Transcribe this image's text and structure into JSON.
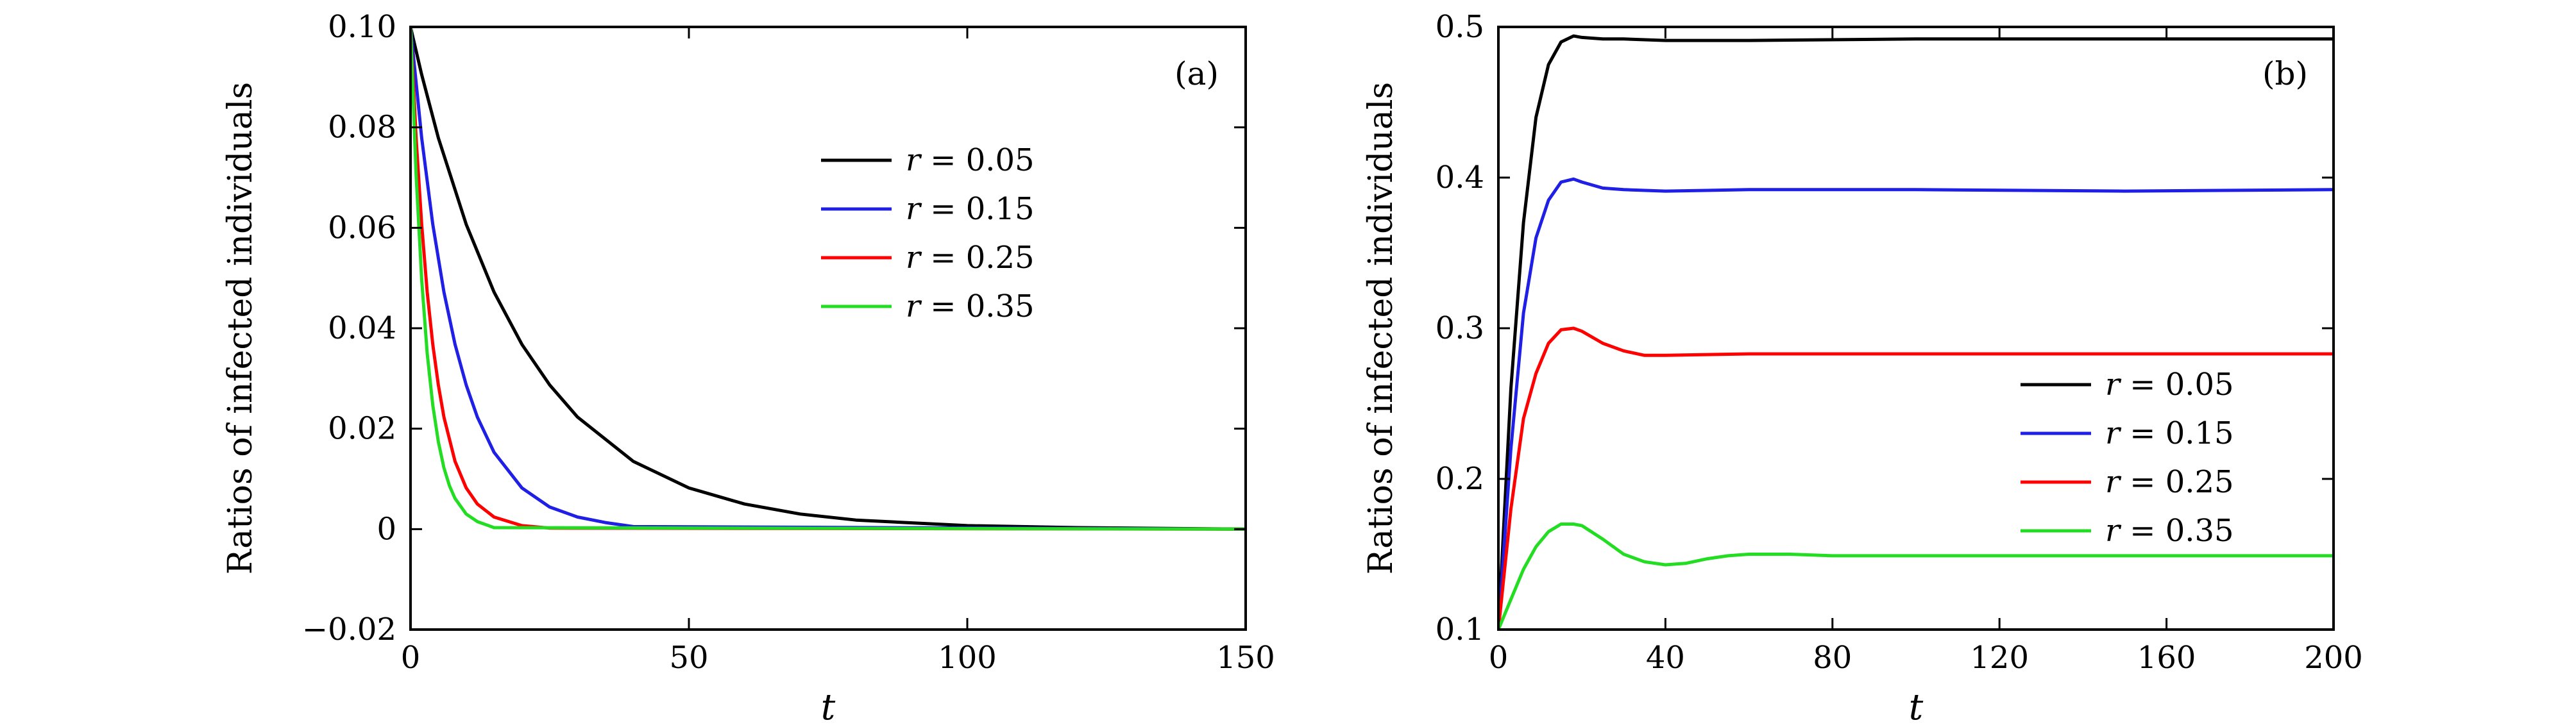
{
  "chart_data": [
    {
      "type": "line",
      "panel": "(a)",
      "xlabel": "t",
      "ylabel": "Ratios of infected individuals",
      "xlim": [
        0,
        150
      ],
      "ylim": [
        -0.02,
        0.1
      ],
      "xticks": [
        0,
        50,
        100,
        150
      ],
      "xtick_labels": [
        "0",
        "50",
        "100",
        "150"
      ],
      "yticks": [
        -0.02,
        0,
        0.02,
        0.04,
        0.06,
        0.08,
        0.1
      ],
      "ytick_labels": [
        "−0.02",
        "0",
        "0.02",
        "0.04",
        "0.06",
        "0.08",
        "0.10"
      ],
      "legend_position": "upper-middle-right",
      "series": [
        {
          "name": "r = 0.05",
          "r": "0.05",
          "color": "#000000",
          "x": [
            0,
            2,
            5,
            10,
            15,
            20,
            25,
            30,
            40,
            50,
            60,
            70,
            80,
            100,
            120,
            150
          ],
          "y": [
            0.1,
            0.0905,
            0.0779,
            0.0607,
            0.0472,
            0.0368,
            0.0287,
            0.0223,
            0.0135,
            0.0082,
            0.005,
            0.003,
            0.0018,
            0.0007,
            0.0003,
            0.0
          ]
        },
        {
          "name": "r = 0.15",
          "r": "0.15",
          "color": "#1f1fe6",
          "x": [
            0,
            2,
            4,
            6,
            8,
            10,
            12,
            15,
            20,
            25,
            30,
            35,
            40,
            150
          ],
          "y": [
            0.1,
            0.0779,
            0.0607,
            0.0472,
            0.0368,
            0.0287,
            0.0223,
            0.0153,
            0.0082,
            0.0044,
            0.0024,
            0.0013,
            0.0005,
            0.0
          ]
        },
        {
          "name": "r = 0.25",
          "r": "0.25",
          "color": "#ff0000",
          "x": [
            0,
            1,
            2,
            3,
            4,
            5,
            6,
            8,
            10,
            12,
            15,
            20,
            25,
            150
          ],
          "y": [
            0.1,
            0.0779,
            0.0607,
            0.0472,
            0.0368,
            0.0287,
            0.0223,
            0.0135,
            0.0082,
            0.005,
            0.0024,
            0.0007,
            0.0002,
            0.0
          ]
        },
        {
          "name": "r = 0.35",
          "r": "0.35",
          "color": "#22dd22",
          "x": [
            0,
            1,
            2,
            3,
            4,
            5,
            6,
            7,
            8,
            10,
            12,
            15,
            150
          ],
          "y": [
            0.1,
            0.0705,
            0.0497,
            0.035,
            0.0247,
            0.0174,
            0.0122,
            0.0086,
            0.0061,
            0.003,
            0.0015,
            0.0003,
            0.0
          ]
        }
      ]
    },
    {
      "type": "line",
      "panel": "(b)",
      "xlabel": "t",
      "ylabel": "Ratios of infected individuals",
      "xlim": [
        0,
        200
      ],
      "ylim": [
        0.1,
        0.5
      ],
      "xticks": [
        0,
        40,
        80,
        120,
        160,
        200
      ],
      "xtick_labels": [
        "0",
        "40",
        "80",
        "120",
        "160",
        "200"
      ],
      "yticks": [
        0.1,
        0.2,
        0.3,
        0.4,
        0.5
      ],
      "ytick_labels": [
        "0.1",
        "0.2",
        "0.3",
        "0.4",
        "0.5"
      ],
      "legend_position": "lower-right",
      "series": [
        {
          "name": "r = 0.05",
          "r": "0.05",
          "color": "#000000",
          "x": [
            0,
            3,
            6,
            9,
            12,
            15,
            18,
            20,
            25,
            30,
            40,
            60,
            100,
            150,
            200
          ],
          "y": [
            0.1,
            0.26,
            0.37,
            0.44,
            0.475,
            0.49,
            0.494,
            0.493,
            0.492,
            0.492,
            0.491,
            0.491,
            0.492,
            0.492,
            0.492
          ]
        },
        {
          "name": "r = 0.15",
          "r": "0.15",
          "color": "#1f1fe6",
          "x": [
            0,
            3,
            6,
            9,
            12,
            15,
            18,
            20,
            25,
            30,
            40,
            60,
            100,
            150,
            200
          ],
          "y": [
            0.1,
            0.22,
            0.31,
            0.36,
            0.385,
            0.397,
            0.399,
            0.397,
            0.393,
            0.392,
            0.391,
            0.392,
            0.392,
            0.391,
            0.392
          ]
        },
        {
          "name": "r = 0.25",
          "r": "0.25",
          "color": "#ff0000",
          "x": [
            0,
            3,
            6,
            9,
            12,
            15,
            18,
            20,
            25,
            30,
            35,
            40,
            60,
            100,
            150,
            200
          ],
          "y": [
            0.1,
            0.18,
            0.24,
            0.27,
            0.29,
            0.299,
            0.3,
            0.298,
            0.29,
            0.285,
            0.282,
            0.282,
            0.283,
            0.283,
            0.283,
            0.283
          ]
        },
        {
          "name": "r = 0.35",
          "r": "0.35",
          "color": "#22dd22",
          "x": [
            0,
            3,
            6,
            9,
            12,
            15,
            18,
            20,
            25,
            30,
            35,
            40,
            45,
            50,
            55,
            60,
            65,
            70,
            80,
            90,
            100,
            150,
            200
          ],
          "y": [
            0.1,
            0.12,
            0.14,
            0.155,
            0.165,
            0.17,
            0.17,
            0.169,
            0.16,
            0.15,
            0.145,
            0.143,
            0.144,
            0.147,
            0.149,
            0.15,
            0.15,
            0.15,
            0.149,
            0.149,
            0.149,
            0.149,
            0.149
          ]
        }
      ]
    }
  ]
}
